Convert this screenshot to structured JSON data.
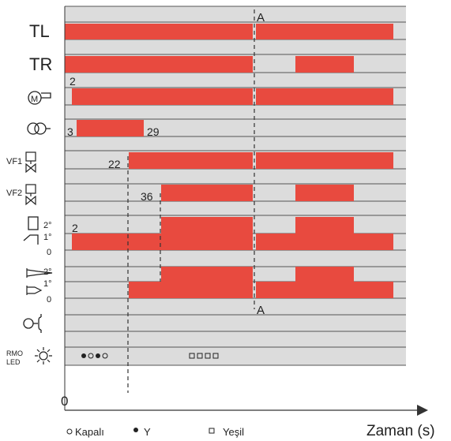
{
  "rows": [
    {
      "id": "TL",
      "label": "TL",
      "kind": "text"
    },
    {
      "id": "TR",
      "label": "TR",
      "kind": "text"
    },
    {
      "id": "motor",
      "label": "",
      "kind": "icon",
      "icon": "motor-icon"
    },
    {
      "id": "transformer",
      "label": "",
      "kind": "icon",
      "icon": "transformer-icon"
    },
    {
      "id": "vf1",
      "label": "VF1",
      "kind": "icon",
      "icon": "valve-icon"
    },
    {
      "id": "vf2",
      "label": "VF2",
      "kind": "icon",
      "icon": "valve-icon"
    },
    {
      "id": "damper",
      "label": "",
      "kind": "icon",
      "icon": "damper-icon",
      "levels": [
        "2°",
        "1°",
        "0"
      ]
    },
    {
      "id": "nozzle",
      "label": "",
      "kind": "icon",
      "icon": "nozzle-icon",
      "levels": [
        "2°",
        "1°",
        "0"
      ]
    },
    {
      "id": "pressure",
      "label": "",
      "kind": "icon",
      "icon": "pressure-switch-icon"
    },
    {
      "id": "rmo",
      "label": "RMO\nLED",
      "kind": "icon",
      "icon": "sun-icon"
    }
  ],
  "markers": {
    "A_top": "A",
    "A_bottom": "A"
  },
  "annotations": {
    "t2_motor": "2",
    "t3": "3",
    "t29": "29",
    "t22": "22",
    "t36": "36",
    "t2_damper": "2"
  },
  "axis": {
    "origin": "0",
    "xlabel": "Zaman (s)"
  },
  "legend": {
    "off": "Kapalı",
    "yellow": "Y",
    "green": "Yeşil"
  },
  "colors": {
    "bar": "#e84a3f",
    "track": "#dcdcdc",
    "grid": "#555555"
  }
}
